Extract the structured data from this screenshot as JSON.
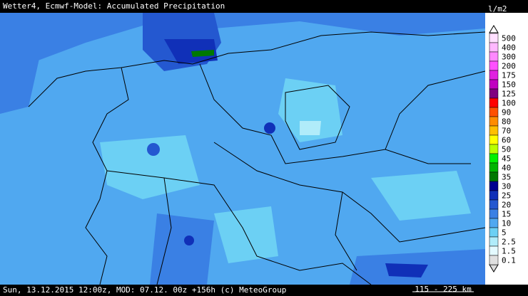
{
  "header": {
    "title": "Wetter4, Ecmwf-Model: Accumulated Precipitation"
  },
  "legend": {
    "unit": "l/m2",
    "levels": [
      {
        "label": "500",
        "color": "#ffe0ff"
      },
      {
        "label": "400",
        "color": "#ffb8ff"
      },
      {
        "label": "300",
        "color": "#ff88ff"
      },
      {
        "label": "200",
        "color": "#ff50ff"
      },
      {
        "label": "175",
        "color": "#e020e0"
      },
      {
        "label": "150",
        "color": "#c000c0"
      },
      {
        "label": "125",
        "color": "#800080"
      },
      {
        "label": "100",
        "color": "#ff0000"
      },
      {
        "label": "90",
        "color": "#ff5000"
      },
      {
        "label": "80",
        "color": "#ff8c00"
      },
      {
        "label": "70",
        "color": "#ffbf00"
      },
      {
        "label": "60",
        "color": "#ffff00"
      },
      {
        "label": "50",
        "color": "#b8ff00"
      },
      {
        "label": "45",
        "color": "#00f000"
      },
      {
        "label": "40",
        "color": "#00b400"
      },
      {
        "label": "35",
        "color": "#007800"
      },
      {
        "label": "30",
        "color": "#000090"
      },
      {
        "label": "25",
        "color": "#1030b8"
      },
      {
        "label": "20",
        "color": "#2458d0"
      },
      {
        "label": "15",
        "color": "#3a80e4"
      },
      {
        "label": "10",
        "color": "#50a8f0"
      },
      {
        "label": "5",
        "color": "#6cd0f4"
      },
      {
        "label": "2.5",
        "color": "#b0ecfa"
      },
      {
        "label": "1.5",
        "color": "#e4faff"
      },
      {
        "label": "0.1",
        "color": "#e0e0e0"
      }
    ]
  },
  "footer": {
    "run": "Sun, 13.12.2015 12:00z, MOD: 07.12. 00z +156h (c) MeteoGroup",
    "scale": "115 - 225 km"
  }
}
